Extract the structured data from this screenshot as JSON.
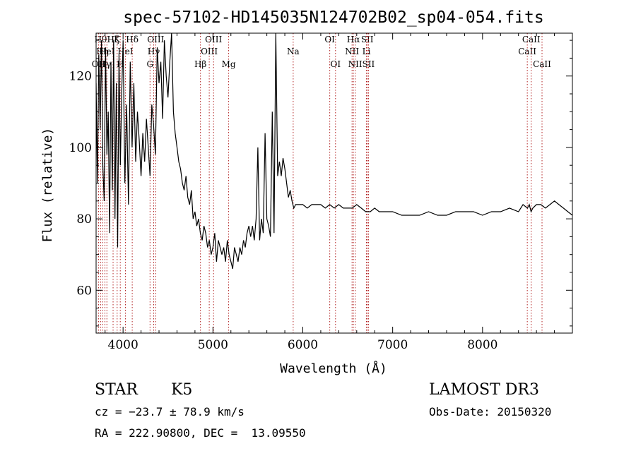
{
  "chart_data": {
    "type": "line",
    "title": "spec-57102-HD145035N124702B02_sp04-054.fits",
    "xlabel": "Wavelength (Å)",
    "ylabel": "Flux (relative)",
    "xlim": [
      3700,
      9000
    ],
    "ylim": [
      48,
      132
    ],
    "xticks": [
      4000,
      5000,
      6000,
      7000,
      8000
    ],
    "yticks": [
      60,
      80,
      100,
      120
    ],
    "grid": false,
    "series": [
      {
        "name": "flux",
        "color": "#000000",
        "x": [
          3700,
          3715,
          3730,
          3745,
          3760,
          3775,
          3790,
          3805,
          3820,
          3835,
          3850,
          3865,
          3880,
          3895,
          3910,
          3925,
          3940,
          3955,
          3970,
          3985,
          4000,
          4020,
          4040,
          4060,
          4080,
          4100,
          4120,
          4140,
          4160,
          4180,
          4200,
          4220,
          4240,
          4260,
          4280,
          4300,
          4320,
          4340,
          4360,
          4380,
          4400,
          4420,
          4440,
          4460,
          4480,
          4500,
          4520,
          4540,
          4560,
          4580,
          4600,
          4620,
          4640,
          4660,
          4680,
          4700,
          4720,
          4740,
          4760,
          4780,
          4800,
          4820,
          4840,
          4860,
          4880,
          4900,
          4920,
          4940,
          4960,
          4980,
          5000,
          5020,
          5040,
          5060,
          5080,
          5100,
          5120,
          5140,
          5160,
          5180,
          5200,
          5220,
          5240,
          5260,
          5280,
          5300,
          5320,
          5340,
          5360,
          5380,
          5400,
          5420,
          5440,
          5460,
          5480,
          5500,
          5520,
          5540,
          5560,
          5580,
          5600,
          5620,
          5640,
          5660,
          5680,
          5700,
          5720,
          5740,
          5760,
          5780,
          5800,
          5820,
          5840,
          5860,
          5880,
          5900,
          5920,
          5950,
          6000,
          6050,
          6100,
          6150,
          6200,
          6250,
          6300,
          6350,
          6400,
          6450,
          6500,
          6550,
          6600,
          6650,
          6700,
          6750,
          6800,
          6850,
          6900,
          6950,
          7000,
          7100,
          7200,
          7300,
          7400,
          7500,
          7600,
          7700,
          7800,
          7900,
          8000,
          8100,
          8200,
          8300,
          8400,
          8450,
          8500,
          8520,
          8540,
          8560,
          8600,
          8650,
          8700,
          8750,
          8800,
          8850,
          8900,
          8950,
          9000
        ],
        "y": [
          118,
          90,
          126,
          105,
          130,
          95,
          85,
          128,
          98,
          110,
          76,
          124,
          88,
          130,
          80,
          118,
          72,
          126,
          95,
          115,
          130,
          90,
          112,
          84,
          124,
          100,
          118,
          96,
          110,
          102,
          92,
          104,
          96,
          108,
          100,
          92,
          112,
          106,
          98,
          128,
          118,
          124,
          108,
          130,
          120,
          114,
          124,
          132,
          110,
          104,
          100,
          96,
          94,
          90,
          88,
          92,
          86,
          84,
          88,
          80,
          82,
          78,
          80,
          76,
          74,
          78,
          76,
          72,
          74,
          70,
          72,
          76,
          68,
          74,
          72,
          70,
          72,
          68,
          74,
          70,
          68,
          66,
          72,
          70,
          68,
          72,
          70,
          74,
          72,
          76,
          78,
          75,
          78,
          74,
          80,
          100,
          74,
          80,
          76,
          104,
          80,
          78,
          75,
          110,
          76,
          132,
          92,
          96,
          92,
          97,
          94,
          90,
          86,
          88,
          85,
          83,
          84,
          84,
          84,
          83,
          84,
          84,
          84,
          83,
          84,
          83,
          84,
          83,
          83,
          83,
          84,
          83,
          82,
          82,
          83,
          82,
          82,
          82,
          82,
          81,
          81,
          81,
          82,
          81,
          81,
          82,
          82,
          82,
          81,
          82,
          82,
          83,
          82,
          84,
          83,
          84,
          82,
          83,
          84,
          84,
          83,
          84,
          85,
          84,
          83,
          82,
          81
        ]
      }
    ],
    "lines": [
      {
        "wl": 3727,
        "label": "OII",
        "row": 2
      },
      {
        "wl": 3750,
        "label": "Hθ",
        "row": 0
      },
      {
        "wl": 3771,
        "label": "Hη",
        "row": 1
      },
      {
        "wl": 3798,
        "label": "Hγ",
        "row": 2
      },
      {
        "wl": 3820,
        "label": "HeI",
        "row": 1
      },
      {
        "wl": 3889,
        "label": "Hζ",
        "row": 0
      },
      {
        "wl": 3934,
        "label": "K",
        "row": 0
      },
      {
        "wl": 3969,
        "label": "H",
        "row": 2
      },
      {
        "wl": 4026,
        "label": "HeI",
        "row": 1
      },
      {
        "wl": 4102,
        "label": "Hδ",
        "row": 0
      },
      {
        "wl": 4300,
        "label": "G",
        "row": 2
      },
      {
        "wl": 4341,
        "label": "Hγ",
        "row": 1
      },
      {
        "wl": 4363,
        "label": "OIII",
        "row": 0
      },
      {
        "wl": 4861,
        "label": "Hβ",
        "row": 2
      },
      {
        "wl": 4959,
        "label": "OIII",
        "row": 1
      },
      {
        "wl": 5007,
        "label": "OIII",
        "row": 0
      },
      {
        "wl": 5175,
        "label": "Mg",
        "row": 2
      },
      {
        "wl": 5893,
        "label": "Na",
        "row": 1
      },
      {
        "wl": 6300,
        "label": "OI",
        "row": 0
      },
      {
        "wl": 6364,
        "label": "OI",
        "row": 2
      },
      {
        "wl": 6548,
        "label": "NII",
        "row": 1
      },
      {
        "wl": 6563,
        "label": "Hα",
        "row": 0
      },
      {
        "wl": 6583,
        "label": "NII",
        "row": 2
      },
      {
        "wl": 6708,
        "label": "Li",
        "row": 1
      },
      {
        "wl": 6717,
        "label": "SII",
        "row": 0
      },
      {
        "wl": 6731,
        "label": "SII",
        "row": 2
      },
      {
        "wl": 8498,
        "label": "CaII",
        "row": 1
      },
      {
        "wl": 8542,
        "label": "CaII",
        "row": 0
      },
      {
        "wl": 8662,
        "label": "CaII",
        "row": 2
      }
    ]
  },
  "info": {
    "object_class": "STAR",
    "subclass": "K5",
    "survey": "LAMOST DR3",
    "cz": "cz = −23.7 ± 78.9 km/s",
    "obs_date": "Obs-Date: 20150320",
    "radec": "RA = 222.90800, DEC =  13.09550"
  },
  "colors": {
    "line_marker": "#b22222",
    "spectrum": "#000000",
    "axes": "#000000"
  }
}
